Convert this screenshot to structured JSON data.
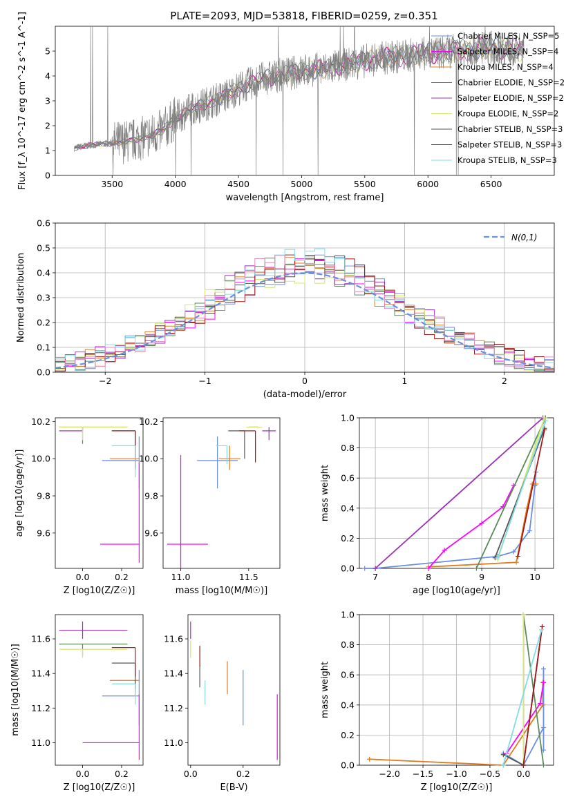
{
  "figure_title": "PLATE=2093, MJD=53818, FIBERID=0259, z=0.351",
  "colors": {
    "Chabrier MILES": "#6a8ee0",
    "Salpeter MILES": "#ff00ff",
    "Kroupa MILES": "#e07b1f",
    "Chabrier ELODIE": "#5a8a5a",
    "Salpeter ELODIE": "#9b30b8",
    "Kroupa ELODIE": "#d4e86a",
    "Chabrier STELIB": "#555555",
    "Salpeter STELIB": "#a01818",
    "Kroupa STELIB": "#80dce8",
    "data": "#808080",
    "pink": "#e88ac0"
  },
  "chart_data": [
    {
      "id": "spectrum",
      "type": "line",
      "title": "PLATE=2093, MJD=53818, FIBERID=0259, z=0.351",
      "xlabel": "wavelength [Angstrom, rest frame]",
      "ylabel": "Flux [f_λ 10^-17 erg cm^-2 s^-1 A^-1]",
      "xlim": [
        3050,
        7000
      ],
      "ylim": [
        0,
        6
      ],
      "xticks": [
        3500,
        4000,
        4500,
        5000,
        5500,
        6000,
        6500
      ],
      "yticks": [
        0,
        1,
        2,
        3,
        4,
        5
      ],
      "grid": false,
      "legend_position": "top-right",
      "series": [
        {
          "name": "Chabrier MILES, N_SSP=5"
        },
        {
          "name": "Salpeter MILES, N_SSP=4"
        },
        {
          "name": "Kroupa MILES, N_SSP=4"
        },
        {
          "name": "Chabrier ELODIE, N_SSP=2"
        },
        {
          "name": "Salpeter ELODIE, N_SSP=2"
        },
        {
          "name": "Kroupa ELODIE, N_SSP=2"
        },
        {
          "name": "Chabrier STELIB, N_SSP=3"
        },
        {
          "name": "Salpeter STELIB, N_SSP=3"
        },
        {
          "name": "Kroupa STELIB, N_SSP=3"
        }
      ],
      "continuum": {
        "x": [
          3200,
          3300,
          3400,
          3500,
          3600,
          3700,
          3800,
          3900,
          4000,
          4100,
          4200,
          4300,
          4400,
          4500,
          4600,
          4700,
          4800,
          4900,
          5000,
          5100,
          5200,
          5300,
          5400,
          5500,
          5600,
          5700,
          5800,
          5900,
          6000,
          6100,
          6200,
          6300,
          6400,
          6500,
          6600,
          6700,
          6750
        ],
        "y": [
          1.1,
          1.2,
          1.25,
          1.3,
          1.35,
          1.45,
          1.6,
          1.8,
          2.3,
          2.6,
          2.8,
          3.0,
          3.2,
          3.5,
          3.7,
          3.9,
          4.0,
          4.1,
          4.2,
          4.25,
          4.3,
          4.4,
          4.5,
          4.6,
          4.7,
          4.75,
          4.8,
          4.85,
          4.9,
          4.95,
          5.0,
          5.05,
          5.1,
          5.15,
          5.1,
          5.05,
          5.0
        ]
      }
    },
    {
      "id": "residuals",
      "type": "line",
      "xlabel": "(data-model)/error",
      "ylabel": "Normed distribution",
      "xlim": [
        -2.5,
        2.5
      ],
      "ylim": [
        0,
        0.6
      ],
      "xticks": [
        -2,
        -1,
        0,
        1,
        2
      ],
      "yticks": [
        0.0,
        0.1,
        0.2,
        0.3,
        0.4,
        0.5,
        0.6
      ],
      "grid": true,
      "legend_position": "top-right",
      "legend_label": "N(0,1)",
      "gaussian": {
        "mean": 0,
        "sigma": 1
      }
    },
    {
      "id": "age_vs_Z",
      "type": "scatter",
      "xlabel": "Z [log10(Z/Z☉)]",
      "ylabel": "age  [log10(age/yr)]",
      "xlim": [
        -0.14,
        0.31
      ],
      "ylim": [
        9.41,
        10.22
      ],
      "xticks": [
        0.0,
        0.2
      ],
      "yticks": [
        9.6,
        9.8,
        10.0,
        10.2
      ],
      "grid": false,
      "points": [
        {
          "c": "Chabrier MILES",
          "x": 0.29,
          "y": 9.99,
          "xl": 0.19,
          "xh": 0.0,
          "yl": 0.15,
          "yh": 0.13
        },
        {
          "c": "Kroupa MILES",
          "x": 0.27,
          "y": 10.0,
          "xl": 0.13,
          "xh": 0.02,
          "yl": 0.06,
          "yh": 0.0
        },
        {
          "c": "Salpeter MILES",
          "x": 0.29,
          "y": 9.54,
          "xl": 0.2,
          "xh": 0.0,
          "yl": 0.1,
          "yh": 0.44
        },
        {
          "c": "Chabrier ELODIE",
          "x": 0.0,
          "y": 10.17,
          "xl": 0.12,
          "xh": 0.23,
          "yl": 0.09,
          "yh": 0.0
        },
        {
          "c": "Salpeter ELODIE",
          "x": 0.0,
          "y": 10.15,
          "xl": 0.12,
          "xh": 0.0,
          "yl": 0.0,
          "yh": 0.02
        },
        {
          "c": "Kroupa ELODIE",
          "x": 0.0,
          "y": 10.17,
          "xl": 0.12,
          "xh": 0.23,
          "yl": 0.07,
          "yh": 0.0
        },
        {
          "c": "Chabrier STELIB",
          "x": 0.27,
          "y": 10.15,
          "xl": 0.12,
          "xh": 0.0,
          "yl": 0.2,
          "yh": 0.0
        },
        {
          "c": "Salpeter STELIB",
          "x": 0.27,
          "y": 10.15,
          "xl": 0.12,
          "xh": 0.0,
          "yl": 0.17,
          "yh": 0.0
        },
        {
          "c": "Kroupa STELIB",
          "x": 0.27,
          "y": 10.07,
          "xl": 0.12,
          "xh": 0.0,
          "yl": 0.17,
          "yh": 0.0
        }
      ]
    },
    {
      "id": "age_vs_mass",
      "type": "scatter",
      "xlabel": "mass [log10(M/M☉)]",
      "ylabel": "",
      "xlim": [
        10.87,
        11.73
      ],
      "ylim": [
        9.41,
        10.22
      ],
      "xticks": [
        11.0,
        11.5
      ],
      "yticks": [
        9.6,
        9.8,
        10.0,
        10.2
      ],
      "grid": false,
      "points": [
        {
          "c": "Chabrier MILES",
          "x": 11.27,
          "y": 9.99,
          "xl": 0.15,
          "xh": 0.15,
          "yl": 0.15,
          "yh": 0.13
        },
        {
          "c": "Kroupa MILES",
          "x": 11.36,
          "y": 10.0,
          "xl": 0.08,
          "xh": 0.08,
          "yl": 0.06,
          "yh": 0.07
        },
        {
          "c": "Salpeter MILES",
          "x": 11.0,
          "y": 9.54,
          "xl": 0.1,
          "xh": 0.2,
          "yl": 0.13,
          "yh": 0.48
        },
        {
          "c": "Chabrier ELODIE",
          "x": 11.57,
          "y": 10.17,
          "xl": 0.07,
          "xh": 0.0,
          "yl": 0.0,
          "yh": 0.0
        },
        {
          "c": "Salpeter ELODIE",
          "x": 11.65,
          "y": 10.15,
          "xl": 0.05,
          "xh": 0.05,
          "yl": 0.05,
          "yh": 0.02
        },
        {
          "c": "Kroupa ELODIE",
          "x": 11.55,
          "y": 10.17,
          "xl": 0.07,
          "xh": 0.05,
          "yl": 0.0,
          "yh": 0.0
        },
        {
          "c": "Chabrier STELIB",
          "x": 11.47,
          "y": 10.15,
          "xl": 0.12,
          "xh": 0.0,
          "yl": 0.15,
          "yh": 0.0
        },
        {
          "c": "Salpeter STELIB",
          "x": 11.55,
          "y": 10.15,
          "xl": 0.12,
          "xh": 0.0,
          "yl": 0.17,
          "yh": 0.0
        },
        {
          "c": "Kroupa STELIB",
          "x": 11.34,
          "y": 10.07,
          "xl": 0.08,
          "xh": 0.0,
          "yl": 0.1,
          "yh": 0.0
        }
      ]
    },
    {
      "id": "cumulative_age",
      "type": "line",
      "xlabel": "age  [log10(age/yr)]",
      "ylabel": "mass weight",
      "xlim": [
        6.7,
        10.35
      ],
      "ylim": [
        0.0,
        1.0
      ],
      "xticks": [
        7,
        8,
        9,
        10
      ],
      "yticks": [
        0.0,
        0.2,
        0.4,
        0.6,
        0.8,
        1.0
      ],
      "grid": true,
      "series": [
        {
          "c": "Chabrier MILES",
          "x": [
            6.8,
            7.0,
            9.3,
            9.6,
            9.9,
            10.0,
            10.02
          ],
          "y": [
            0.0,
            0.0,
            0.08,
            0.11,
            0.25,
            0.55,
            0.64
          ]
        },
        {
          "c": "Kroupa MILES",
          "x": [
            8.0,
            9.65,
            9.85,
            9.95,
            10.02
          ],
          "y": [
            0.01,
            0.04,
            0.4,
            0.56,
            0.56
          ]
        },
        {
          "c": "Salpeter MILES",
          "x": [
            8.0,
            8.3,
            9.0,
            9.4,
            9.6
          ],
          "y": [
            0.0,
            0.12,
            0.3,
            0.41,
            0.55
          ]
        },
        {
          "c": "Chabrier ELODIE",
          "x": [
            8.9,
            10.2
          ],
          "y": [
            0.0,
            1.0
          ]
        },
        {
          "c": "Salpeter ELODIE",
          "x": [
            7.0,
            10.15
          ],
          "y": [
            0.0,
            1.0
          ]
        },
        {
          "c": "Kroupa ELODIE",
          "x": [
            9.3,
            10.18
          ],
          "y": [
            0.06,
            1.0
          ]
        },
        {
          "c": "Chabrier STELIB",
          "x": [
            9.25,
            10.18
          ],
          "y": [
            0.07,
            0.93
          ]
        },
        {
          "c": "Salpeter STELIB",
          "x": [
            9.68,
            10.18
          ],
          "y": [
            0.08,
            0.92
          ]
        },
        {
          "c": "Kroupa STELIB",
          "x": [
            9.3,
            10.2
          ],
          "y": [
            0.07,
            0.98
          ]
        }
      ]
    },
    {
      "id": "mass_vs_Z",
      "type": "scatter",
      "xlabel": "Z [log10(Z/Z☉)]",
      "ylabel": "mass [log10(M/M☉)]",
      "xlim": [
        -0.14,
        0.31
      ],
      "ylim": [
        10.87,
        11.74
      ],
      "xticks": [
        0.0,
        0.2
      ],
      "yticks": [
        11.0,
        11.2,
        11.4,
        11.6
      ],
      "grid": false,
      "points": [
        {
          "c": "Chabrier MILES",
          "x": 0.29,
          "y": 11.27,
          "xl": 0.19,
          "xh": 0.0,
          "yl": 0.17,
          "yh": 0.15
        },
        {
          "c": "Kroupa MILES",
          "x": 0.27,
          "y": 11.36,
          "xl": 0.13,
          "xh": 0.02,
          "yl": 0.08,
          "yh": 0.0
        },
        {
          "c": "Salpeter MILES",
          "x": 0.29,
          "y": 11.0,
          "xl": 0.29,
          "xh": 0.0,
          "yl": 0.1,
          "yh": 0.28
        },
        {
          "c": "Chabrier ELODIE",
          "x": 0.0,
          "y": 11.57,
          "xl": 0.12,
          "xh": 0.23,
          "yl": 0.07,
          "yh": 0.0
        },
        {
          "c": "Salpeter ELODIE",
          "x": 0.0,
          "y": 11.65,
          "xl": 0.12,
          "xh": 0.23,
          "yl": 0.05,
          "yh": 0.05
        },
        {
          "c": "Kroupa ELODIE",
          "x": 0.0,
          "y": 11.54,
          "xl": 0.12,
          "xh": 0.23,
          "yl": 0.05,
          "yh": 0.0
        },
        {
          "c": "Chabrier STELIB",
          "x": 0.27,
          "y": 11.46,
          "xl": 0.12,
          "xh": 0.0,
          "yl": 0.15,
          "yh": 0.0
        },
        {
          "c": "Salpeter STELIB",
          "x": 0.27,
          "y": 11.55,
          "xl": 0.12,
          "xh": 0.0,
          "yl": 0.17,
          "yh": 0.0
        },
        {
          "c": "Kroupa STELIB",
          "x": 0.27,
          "y": 11.34,
          "xl": 0.12,
          "xh": 0.0,
          "yl": 0.12,
          "yh": 0.0
        }
      ]
    },
    {
      "id": "mass_vs_EBV",
      "type": "scatter",
      "xlabel": "E(B-V)",
      "ylabel": "",
      "xlim": [
        -0.01,
        0.34
      ],
      "ylim": [
        10.87,
        11.74
      ],
      "xticks": [
        0.0,
        0.2
      ],
      "yticks": [
        11.0,
        11.2,
        11.4,
        11.6
      ],
      "grid": false,
      "points": [
        {
          "c": "Chabrier MILES",
          "x": 0.2,
          "y": 11.27,
          "yl": 0.17,
          "yh": 0.15
        },
        {
          "c": "Kroupa MILES",
          "x": 0.14,
          "y": 11.36,
          "yl": 0.08,
          "yh": 0.11
        },
        {
          "c": "Salpeter MILES",
          "x": 0.33,
          "y": 11.0,
          "yl": 0.1,
          "yh": 0.28
        },
        {
          "c": "Salpeter ELODIE",
          "x": 0.0,
          "y": 11.65,
          "yl": 0.05,
          "yh": 0.05
        },
        {
          "c": "Kroupa ELODIE",
          "x": 0.0,
          "y": 11.54,
          "yl": 0.05,
          "yh": 0.05
        },
        {
          "c": "Chabrier STELIB",
          "x": 0.035,
          "y": 11.4,
          "yl": 0.08,
          "yh": 0.05
        },
        {
          "c": "Salpeter STELIB",
          "x": 0.035,
          "y": 11.5,
          "yl": 0.06,
          "yh": 0.06
        },
        {
          "c": "Kroupa STELIB",
          "x": 0.055,
          "y": 11.3,
          "yl": 0.08,
          "yh": 0.06
        }
      ]
    },
    {
      "id": "cumulative_Z",
      "type": "line",
      "xlabel": "Z [log10(Z/Z☉)]",
      "ylabel": "mass weight",
      "xlim": [
        -2.45,
        0.45
      ],
      "ylim": [
        0.0,
        1.0
      ],
      "xticks": [
        -2.0,
        -1.5,
        -1.0,
        -0.5,
        0.0
      ],
      "yticks": [
        0.0,
        0.2,
        0.4,
        0.6,
        0.8,
        1.0
      ],
      "grid": true,
      "series": [
        {
          "c": "Kroupa MILES",
          "x": [
            -2.3,
            -0.3,
            0.29,
            0.29
          ],
          "y": [
            0.04,
            0.0,
            0.4,
            0.55
          ]
        },
        {
          "c": "Chabrier MILES",
          "x": [
            -0.3,
            0.0,
            0.3,
            0.3,
            0.3,
            0.3
          ],
          "y": [
            0.08,
            0.0,
            0.25,
            0.55,
            0.64,
            0.1
          ]
        },
        {
          "c": "Salpeter MILES",
          "x": [
            -0.25,
            0.25,
            0.3
          ],
          "y": [
            0.08,
            0.41,
            0.55
          ]
        },
        {
          "c": "Chabrier ELODIE",
          "x": [
            0.0,
            0.3
          ],
          "y": [
            1.0,
            0.0
          ]
        },
        {
          "c": "Salpeter ELODIE",
          "x": [
            0.0,
            0.0
          ],
          "y": [
            0.0,
            1.0
          ]
        },
        {
          "c": "Kroupa ELODIE",
          "x": [
            0.0,
            0.0
          ],
          "y": [
            0.0,
            1.0
          ]
        },
        {
          "c": "Chabrier STELIB",
          "x": [
            -0.3,
            0.0,
            0.28
          ],
          "y": [
            0.07,
            0.0,
            0.92
          ]
        },
        {
          "c": "Salpeter STELIB",
          "x": [
            0.0,
            0.28
          ],
          "y": [
            0.0,
            0.92
          ]
        },
        {
          "c": "Kroupa STELIB",
          "x": [
            -0.3,
            0.27
          ],
          "y": [
            0.0,
            0.9
          ]
        }
      ]
    }
  ]
}
